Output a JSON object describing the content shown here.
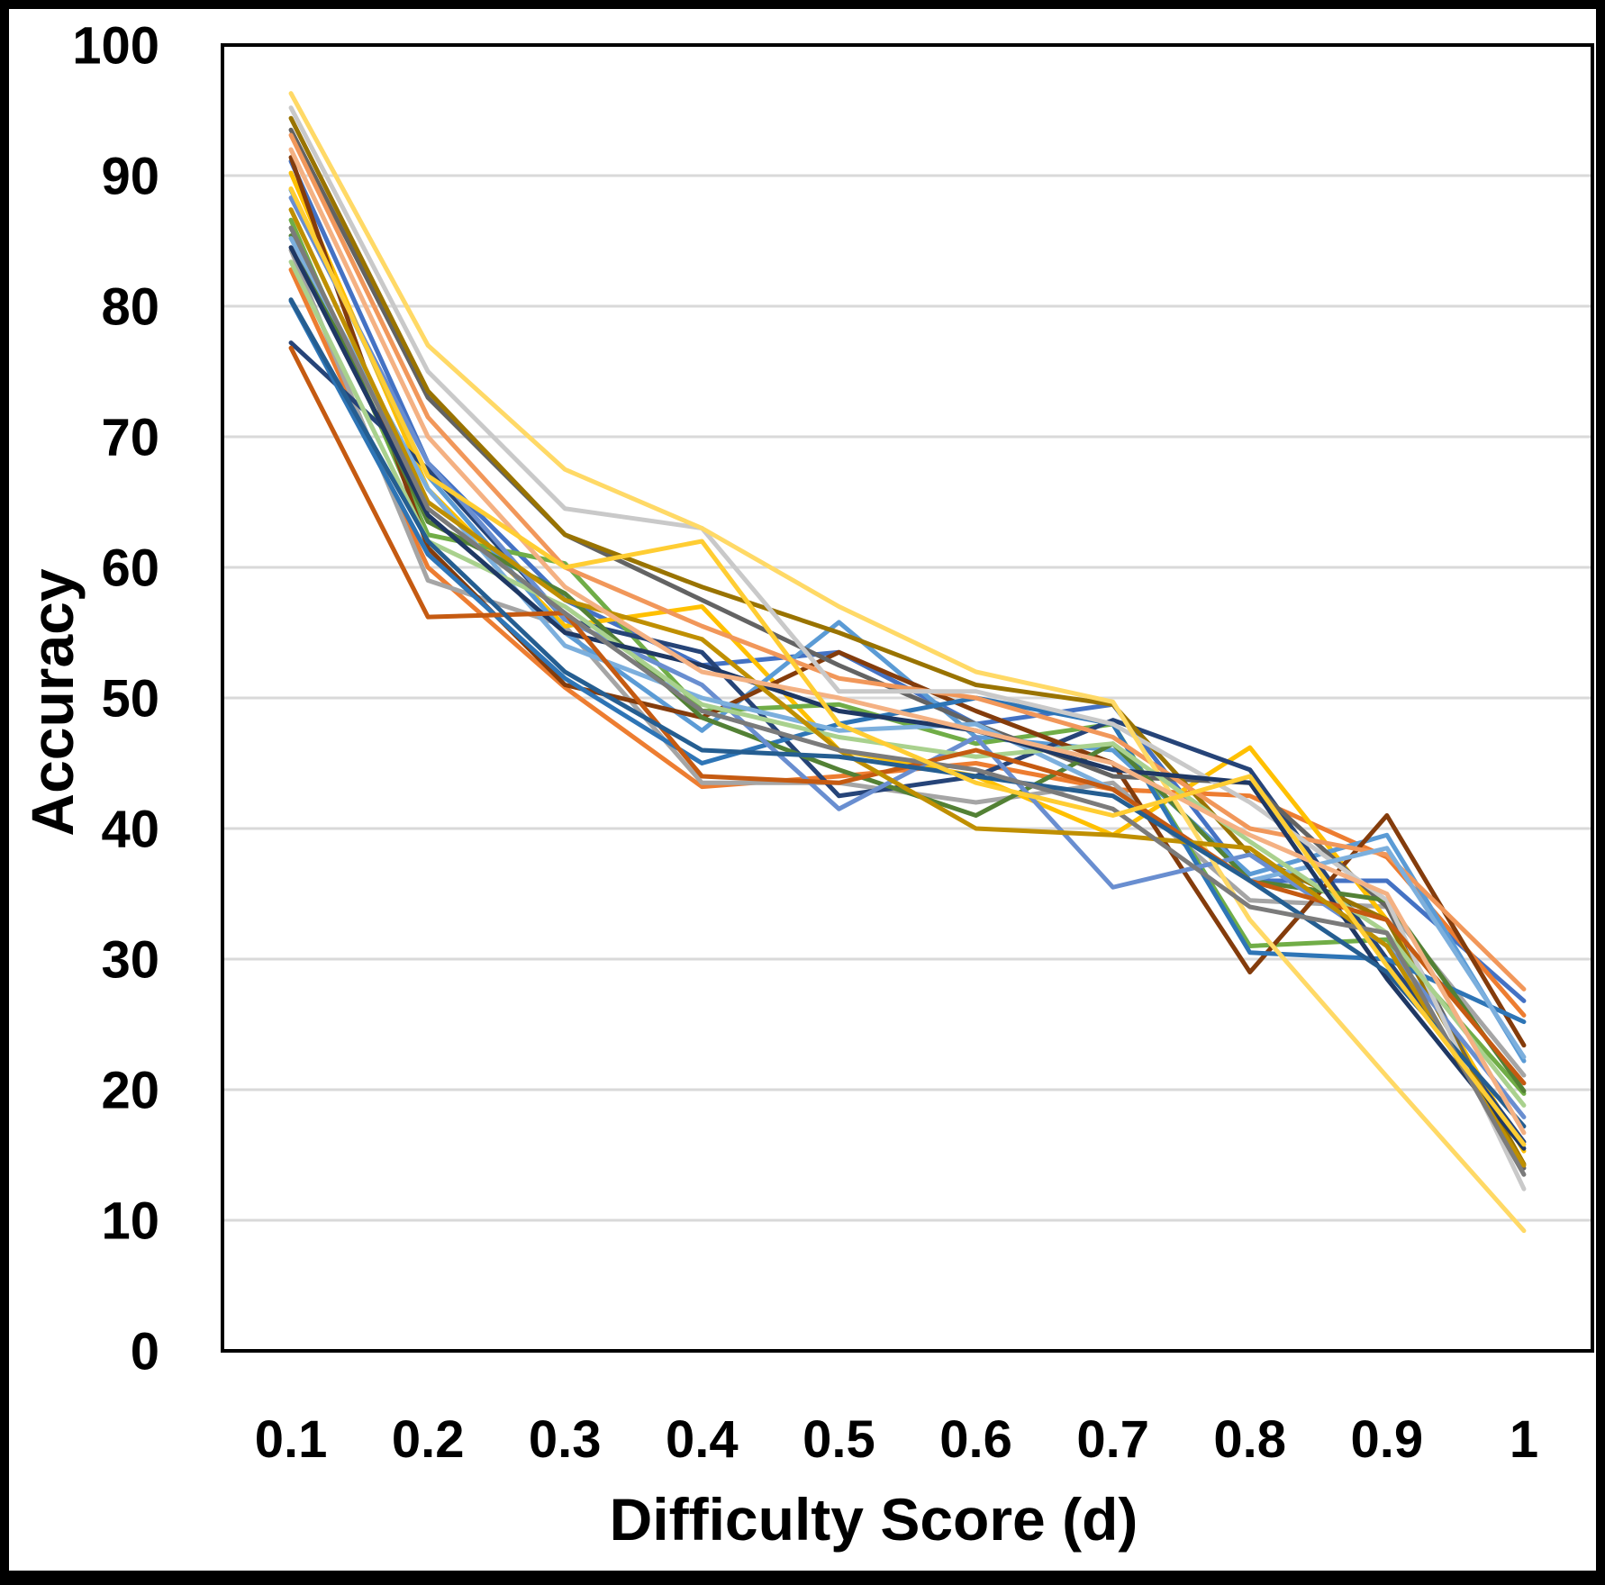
{
  "figure": {
    "background": "#FFFFFF",
    "frame_color": "#000000",
    "plot_border_color": "#000000",
    "gridline_color": "#D9D9D9"
  },
  "chart_data": {
    "type": "line",
    "title": "",
    "xlabel": "Difficulty Score (d)",
    "ylabel": "Accuracy",
    "x": [
      0.1,
      0.2,
      0.3,
      0.4,
      0.5,
      0.6,
      0.7,
      0.8,
      0.9,
      1
    ],
    "x_tick_labels": [
      "0.1",
      "0.2",
      "0.3",
      "0.4",
      "0.5",
      "0.6",
      "0.7",
      "0.8",
      "0.9",
      "1"
    ],
    "y_ticks": [
      0,
      10,
      20,
      30,
      40,
      50,
      60,
      70,
      80,
      90,
      100
    ],
    "ylim": [
      0,
      100
    ],
    "grid": "horizontal",
    "legend_position": "none",
    "series": [
      {
        "name": "blue",
        "color": "#4472C4",
        "values": [
          91.1,
          68,
          57.5,
          52.5,
          53.5,
          48,
          49.5,
          36,
          36,
          26.8
        ]
      },
      {
        "name": "orange",
        "color": "#ED7D31",
        "values": [
          82.8,
          60,
          50.8,
          43.2,
          44,
          45,
          43,
          42.5,
          37.8,
          25.7
        ]
      },
      {
        "name": "gray",
        "color": "#A5A5A5",
        "values": [
          84.3,
          59,
          55.5,
          43.5,
          43.5,
          42,
          43.5,
          34.5,
          34,
          21.1
        ]
      },
      {
        "name": "gold",
        "color": "#FFC000",
        "values": [
          90.2,
          66,
          55.5,
          57,
          46,
          44,
          39.5,
          46.2,
          33,
          15.3
        ]
      },
      {
        "name": "light-blue",
        "color": "#5B9BD5",
        "values": [
          88.9,
          67,
          55,
          47.5,
          55.8,
          47,
          46,
          36.5,
          39.5,
          22.2
        ]
      },
      {
        "name": "green",
        "color": "#70AD47",
        "values": [
          86.6,
          62.5,
          60.3,
          49,
          49.5,
          46.5,
          48,
          31,
          31.5,
          19.7
        ]
      },
      {
        "name": "navy",
        "color": "#264478",
        "values": [
          77.2,
          67.5,
          56,
          53.5,
          42.5,
          44,
          48.3,
          44.5,
          30,
          16
        ]
      },
      {
        "name": "rust",
        "color": "#843C0C",
        "values": [
          91.4,
          61.5,
          51,
          48.5,
          53.5,
          49,
          45,
          29,
          41,
          23.4
        ]
      },
      {
        "name": "dark-gray",
        "color": "#636363",
        "values": [
          93.5,
          73,
          62.5,
          57.5,
          52.5,
          48,
          44,
          43.5,
          34,
          14
        ]
      },
      {
        "name": "olive",
        "color": "#997300",
        "values": [
          94.4,
          73.5,
          62.5,
          58.5,
          55,
          51,
          49.5,
          38,
          33,
          14.3
        ]
      },
      {
        "name": "bright-blue",
        "color": "#2E75B6",
        "values": [
          80.4,
          61,
          51.5,
          45,
          48,
          50,
          48,
          30.5,
          30,
          25.2
        ]
      },
      {
        "name": "dark-green",
        "color": "#538135",
        "values": [
          85.4,
          63.5,
          58,
          48.5,
          44.5,
          41,
          46.5,
          36,
          34.5,
          19.9
        ]
      },
      {
        "name": "cornflower",
        "color": "#698ED0",
        "values": [
          88.3,
          68,
          56,
          51,
          41.5,
          47,
          35.5,
          38,
          31,
          17.9
        ]
      },
      {
        "name": "salmon",
        "color": "#F1975A",
        "values": [
          93.1,
          71.5,
          60,
          55.5,
          51.5,
          50,
          47,
          40,
          38,
          27.7
        ]
      },
      {
        "name": "silver",
        "color": "#C9C9C9",
        "values": [
          95.2,
          75,
          64.5,
          63,
          50.5,
          50.5,
          48,
          42,
          34.5,
          12.4
        ]
      },
      {
        "name": "light-yellow",
        "color": "#FFD966",
        "values": [
          96.3,
          77,
          67.5,
          63,
          57,
          52,
          49.7,
          33,
          21,
          9.2
        ]
      },
      {
        "name": "pale-blue",
        "color": "#7CAFDD",
        "values": [
          85.2,
          66,
          54,
          50,
          47.5,
          48,
          43,
          36,
          38.5,
          22.5
        ]
      },
      {
        "name": "light-green",
        "color": "#A9D18E",
        "values": [
          83.4,
          62,
          57,
          49.5,
          47,
          45.5,
          46.5,
          39,
          32,
          18.8
        ]
      },
      {
        "name": "navy-2",
        "color": "#1F3864",
        "values": [
          84.5,
          64,
          55,
          52.5,
          49,
          47.5,
          44.5,
          43.5,
          28.5,
          15.5
        ]
      },
      {
        "name": "dark-orange",
        "color": "#C55A11",
        "values": [
          76.8,
          56.2,
          56.5,
          44,
          43.5,
          46,
          43,
          36,
          33,
          20.5
        ]
      },
      {
        "name": "goldenrod",
        "color": "#BF8F00",
        "values": [
          87.4,
          65,
          57.5,
          54.5,
          46,
          40,
          39.5,
          38.5,
          31,
          14.2
        ]
      },
      {
        "name": "steel-blue",
        "color": "#255E91",
        "values": [
          80.5,
          62,
          52,
          46,
          45.5,
          44,
          42.5,
          36,
          29,
          17.2
        ]
      },
      {
        "name": "mid-gray",
        "color": "#7B7B7B",
        "values": [
          86,
          64.5,
          56.5,
          49,
          46,
          44.5,
          41.5,
          34,
          32,
          13.5
        ]
      },
      {
        "name": "salmon-2",
        "color": "#F4B183",
        "values": [
          92,
          70,
          58.5,
          52,
          50,
          47.5,
          45,
          39.5,
          35,
          16.7
        ]
      },
      {
        "name": "amber",
        "color": "#FFCD33",
        "values": [
          89,
          67,
          60,
          62,
          48,
          43.5,
          41,
          44,
          29.5,
          15.8
        ]
      }
    ]
  }
}
